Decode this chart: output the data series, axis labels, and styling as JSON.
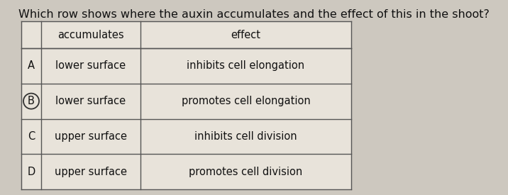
{
  "title": "Which row shows where the auxin accumulates and the effect of this in the shoot?",
  "title_fontsize": 11.5,
  "background_color": "#cdc8bf",
  "table_bg": "#e8e3da",
  "col_headers": [
    "accumulates",
    "effect"
  ],
  "row_labels": [
    "A",
    "B",
    "C",
    "D"
  ],
  "col1": [
    "lower surface",
    "lower surface",
    "upper surface",
    "upper surface"
  ],
  "col2": [
    "inhibits cell elongation",
    "promotes cell elongation",
    "inhibits cell division",
    "promotes cell division"
  ],
  "circle_row": 1,
  "line_color": "#555555",
  "text_color": "#111111",
  "header_fontsize": 10.5,
  "cell_fontsize": 10.5
}
